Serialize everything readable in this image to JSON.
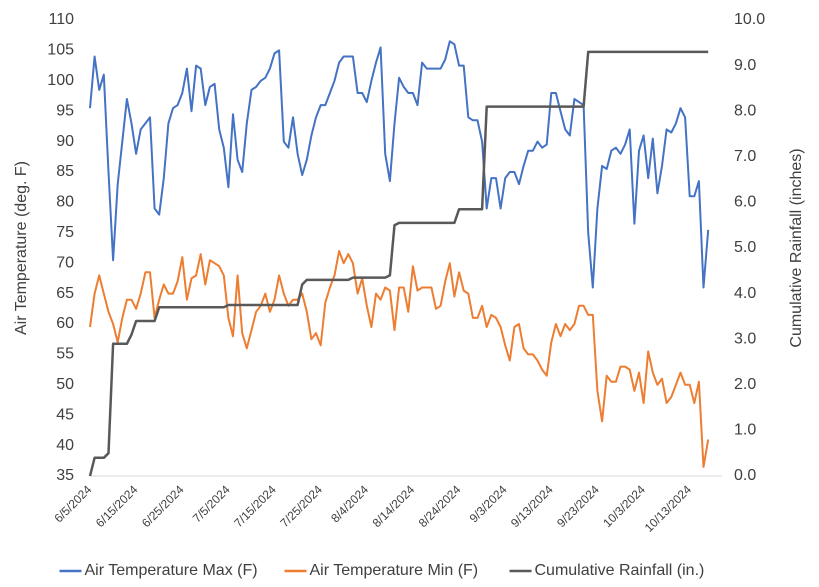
{
  "chart_data": {
    "type": "line",
    "y_label": "Air Temperature (deg. F)",
    "y2_label": "Cumulative Rainfall (inches)",
    "categories": [
      "6/5/2024",
      null,
      null,
      null,
      null,
      null,
      null,
      null,
      null,
      null,
      "6/15/2024",
      null,
      null,
      null,
      null,
      null,
      null,
      null,
      null,
      null,
      "6/25/2024",
      null,
      null,
      null,
      null,
      null,
      null,
      null,
      null,
      null,
      "7/5/2024",
      null,
      null,
      null,
      null,
      null,
      null,
      null,
      null,
      null,
      "7/15/2024",
      null,
      null,
      null,
      null,
      null,
      null,
      null,
      null,
      null,
      "7/25/2024",
      null,
      null,
      null,
      null,
      null,
      null,
      null,
      null,
      null,
      "8/4/2024",
      null,
      null,
      null,
      null,
      null,
      null,
      null,
      null,
      null,
      "8/14/2024",
      null,
      null,
      null,
      null,
      null,
      null,
      null,
      null,
      null,
      "8/24/2024",
      null,
      null,
      null,
      null,
      null,
      null,
      null,
      null,
      null,
      "9/3/2024",
      null,
      null,
      null,
      null,
      null,
      null,
      null,
      null,
      null,
      "9/13/2024",
      null,
      null,
      null,
      null,
      null,
      null,
      null,
      null,
      null,
      "9/23/2024",
      null,
      null,
      null,
      null,
      null,
      null,
      null,
      null,
      null,
      "10/3/2024",
      null,
      null,
      null,
      null,
      null,
      null,
      null,
      null,
      null,
      "10/13/2024",
      null,
      null,
      null,
      null
    ],
    "series": [
      {
        "name": "Air Temperature Max (F)",
        "color": "#4472c4",
        "values": [
          95.5,
          104,
          98.5,
          101,
          85,
          70.5,
          83,
          90,
          97,
          93,
          88,
          92,
          93,
          94,
          79,
          78,
          84,
          93,
          95.5,
          96,
          98,
          102,
          95,
          102.5,
          102,
          96,
          99,
          99.5,
          92,
          89,
          82.5,
          94.5,
          87,
          85,
          93,
          98.5,
          99,
          100,
          100.5,
          102,
          104.5,
          105,
          90,
          89,
          94,
          88,
          84.5,
          87,
          91,
          94,
          96,
          96,
          98,
          100,
          103,
          104,
          104,
          104,
          98,
          98,
          96.5,
          100,
          103,
          105.5,
          88,
          83.5,
          93,
          100.5,
          99,
          98,
          98,
          96,
          103,
          102,
          102,
          102,
          102,
          103.5,
          106.5,
          106,
          102.5,
          102.5,
          94,
          93.5,
          93.5,
          90,
          79,
          84,
          84,
          79,
          84,
          85,
          85,
          83,
          86,
          88.5,
          88.5,
          90,
          89,
          89.5,
          98,
          98,
          95,
          92,
          91,
          97,
          96.5,
          96,
          75,
          66,
          79,
          86,
          85.5,
          88.5,
          89,
          88,
          89.5,
          92,
          76.5,
          88.5,
          91,
          84,
          90.5,
          81.5,
          86,
          92,
          91.5,
          93,
          95.5,
          94,
          81,
          81,
          83.5,
          66,
          75.5
        ]
      },
      {
        "name": "Air Temperature Min (F)",
        "color": "#ed7d31",
        "values": [
          59.5,
          65,
          68,
          65,
          62,
          60,
          57,
          61,
          64,
          64,
          62.5,
          65,
          68.5,
          68.5,
          61,
          64,
          66.5,
          65,
          65,
          67,
          71,
          64,
          67.5,
          68,
          71.5,
          66.5,
          70.5,
          70,
          69.5,
          68,
          61,
          58,
          68,
          58.5,
          56,
          59,
          62,
          63,
          65,
          62,
          64,
          68,
          65,
          63,
          64,
          64,
          65,
          62,
          57.5,
          58.5,
          56.5,
          63.5,
          66,
          68,
          72,
          70,
          71.5,
          70,
          65,
          67.5,
          63,
          59.5,
          65,
          64,
          66,
          65.5,
          59,
          66,
          66,
          62,
          69.5,
          65.5,
          66,
          66,
          66,
          62.5,
          63,
          67,
          70,
          64.5,
          68.5,
          65.5,
          65,
          61,
          61,
          63,
          59.5,
          61.5,
          61,
          59.5,
          56.5,
          54,
          59.5,
          60,
          56,
          55,
          55,
          54,
          52.5,
          51.5,
          57,
          60,
          58,
          60,
          59,
          60,
          63,
          63,
          61.5,
          61.5,
          49,
          44,
          51.5,
          50.5,
          50.5,
          53,
          53,
          52.5,
          49,
          52,
          47,
          55.5,
          52,
          50,
          51,
          47,
          48,
          50,
          52,
          50,
          50,
          47,
          50.5,
          36.5,
          41
        ]
      },
      {
        "name": "Cumulative Rainfall (in.)",
        "color": "#595959",
        "axis": "y2",
        "values": [
          0,
          0.4,
          0.4,
          0.4,
          0.5,
          2.9,
          2.9,
          2.9,
          2.9,
          3.1,
          3.4,
          3.4,
          3.4,
          3.4,
          3.4,
          3.7,
          3.7,
          3.7,
          3.7,
          3.7,
          3.7,
          3.7,
          3.7,
          3.7,
          3.7,
          3.7,
          3.7,
          3.7,
          3.7,
          3.7,
          3.75,
          3.75,
          3.75,
          3.75,
          3.75,
          3.75,
          3.75,
          3.75,
          3.75,
          3.75,
          3.75,
          3.75,
          3.75,
          3.75,
          3.75,
          3.75,
          4.2,
          4.3,
          4.3,
          4.3,
          4.3,
          4.3,
          4.3,
          4.3,
          4.3,
          4.3,
          4.3,
          4.35,
          4.35,
          4.35,
          4.35,
          4.35,
          4.35,
          4.35,
          4.35,
          4.4,
          5.5,
          5.55,
          5.55,
          5.55,
          5.55,
          5.55,
          5.55,
          5.55,
          5.55,
          5.55,
          5.55,
          5.55,
          5.55,
          5.55,
          5.85,
          5.85,
          5.85,
          5.85,
          5.85,
          5.85,
          8.1,
          8.1,
          8.1,
          8.1,
          8.1,
          8.1,
          8.1,
          8.1,
          8.1,
          8.1,
          8.1,
          8.1,
          8.1,
          8.1,
          8.1,
          8.1,
          8.1,
          8.1,
          8.1,
          8.1,
          8.1,
          8.1,
          9.3,
          9.3,
          9.3,
          9.3,
          9.3,
          9.3,
          9.3,
          9.3,
          9.3,
          9.3,
          9.3,
          9.3,
          9.3,
          9.3,
          9.3,
          9.3,
          9.3,
          9.3,
          9.3,
          9.3,
          9.3,
          9.3,
          9.3,
          9.3,
          9.3,
          9.3,
          9.3
        ]
      }
    ],
    "ylim": [
      35,
      110
    ],
    "yticks": [
      35,
      40,
      45,
      50,
      55,
      60,
      65,
      70,
      75,
      80,
      85,
      90,
      95,
      100,
      105,
      110
    ],
    "y2lim": [
      0,
      10
    ],
    "y2ticks": [
      {
        "value": 0,
        "label": "0.0"
      },
      {
        "value": 1,
        "label": "1.0"
      },
      {
        "value": 2,
        "label": "2.0"
      },
      {
        "value": 3,
        "label": "3.0"
      },
      {
        "value": 4,
        "label": "4.0"
      },
      {
        "value": 5,
        "label": "5.0"
      },
      {
        "value": 6,
        "label": "6.0"
      },
      {
        "value": 7,
        "label": "7.0"
      },
      {
        "value": 8,
        "label": "8.0"
      },
      {
        "value": 9,
        "label": "9.0"
      },
      {
        "value": 10,
        "label": "10.0"
      }
    ],
    "grid": false,
    "legend": "bottom"
  }
}
